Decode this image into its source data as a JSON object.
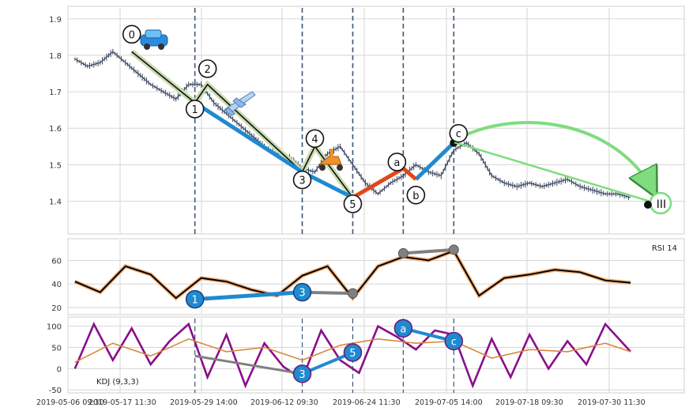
{
  "chart_data": [
    {
      "type": "line",
      "panel": "price",
      "ylim": [
        1.31,
        1.93
      ],
      "yticks": [
        1.4,
        1.5,
        1.6,
        1.7,
        1.8,
        1.9
      ],
      "grid": true,
      "series": [
        {
          "name": "",
          "color": "#3a4660",
          "x": [
            "2019-05-07",
            "2019-05-09",
            "2019-05-11",
            "2019-05-13",
            "2019-05-15",
            "2019-05-17",
            "2019-05-19",
            "2019-05-21",
            "2019-05-23",
            "2019-05-25",
            "2019-05-27",
            "2019-05-29",
            "2019-05-31",
            "2019-06-02",
            "2019-06-04",
            "2019-06-06",
            "2019-06-08",
            "2019-06-10",
            "2019-06-12",
            "2019-06-14",
            "2019-06-16",
            "2019-06-18",
            "2019-06-20",
            "2019-06-22",
            "2019-06-24",
            "2019-06-26",
            "2019-06-28",
            "2019-06-30",
            "2019-07-02",
            "2019-07-04",
            "2019-07-06",
            "2019-07-08",
            "2019-07-10",
            "2019-07-12",
            "2019-07-14",
            "2019-07-16",
            "2019-07-18",
            "2019-07-20",
            "2019-07-22",
            "2019-07-24",
            "2019-07-26",
            "2019-07-28",
            "2019-07-30",
            "2019-08-01",
            "2019-08-03"
          ],
          "y": [
            1.79,
            1.77,
            1.78,
            1.81,
            1.78,
            1.75,
            1.72,
            1.7,
            1.68,
            1.72,
            1.72,
            1.67,
            1.64,
            1.61,
            1.58,
            1.55,
            1.53,
            1.52,
            1.49,
            1.48,
            1.53,
            1.55,
            1.5,
            1.45,
            1.42,
            1.45,
            1.47,
            1.5,
            1.48,
            1.47,
            1.54,
            1.56,
            1.53,
            1.47,
            1.45,
            1.44,
            1.45,
            1.44,
            1.45,
            1.46,
            1.44,
            1.43,
            1.42,
            1.42,
            1.41
          ]
        }
      ],
      "wave_points": [
        {
          "label": "0",
          "x": "2019-05-16",
          "y": 1.81
        },
        {
          "label": "1",
          "x": "2019-05-26",
          "y": 1.67
        },
        {
          "label": "2",
          "x": "2019-05-28",
          "y": 1.72
        },
        {
          "label": "3",
          "x": "2019-06-12",
          "y": 1.48
        },
        {
          "label": "4",
          "x": "2019-06-14",
          "y": 1.55
        },
        {
          "label": "5",
          "x": "2019-06-20",
          "y": 1.41
        },
        {
          "label": "a",
          "x": "2019-06-28",
          "y": 1.49
        },
        {
          "label": "b",
          "x": "2019-06-30",
          "y": 1.46
        },
        {
          "label": "c",
          "x": "2019-07-06",
          "y": 1.56
        }
      ],
      "text_labels": [
        "0",
        "1",
        "2",
        "3",
        "4",
        "5",
        "a",
        "b",
        "c"
      ],
      "vertical_lines_x": [
        "2019-05-26",
        "2019-06-12",
        "2019-06-20",
        "2019-06-28",
        "2019-07-06"
      ],
      "end_marker": {
        "x": "2019-08-05",
        "y": 1.39,
        "label": "III"
      }
    },
    {
      "type": "line",
      "panel": "rsi",
      "annotation": "RSI 14",
      "ylim": [
        14,
        77
      ],
      "yticks": [
        20,
        40,
        60
      ],
      "grid": true,
      "series": [
        {
          "name": "",
          "color": "#000000",
          "x": [
            "2019-05-07",
            "2019-05-11",
            "2019-05-15",
            "2019-05-19",
            "2019-05-23",
            "2019-05-27",
            "2019-05-31",
            "2019-06-04",
            "2019-06-08",
            "2019-06-12",
            "2019-06-16",
            "2019-06-20",
            "2019-06-24",
            "2019-06-28",
            "2019-07-02",
            "2019-07-06",
            "2019-07-10",
            "2019-07-14",
            "2019-07-18",
            "2019-07-22",
            "2019-07-26",
            "2019-07-30",
            "2019-08-03"
          ],
          "y": [
            42,
            33,
            55,
            48,
            28,
            45,
            42,
            35,
            30,
            47,
            55,
            28,
            55,
            63,
            60,
            68,
            30,
            45,
            48,
            52,
            50,
            43,
            41
          ]
        }
      ],
      "points": [
        {
          "label": "1",
          "x": "2019-05-26",
          "y": 27
        },
        {
          "label": "3",
          "x": "2019-06-12",
          "y": 33
        },
        {
          "label": "",
          "x": "2019-06-20",
          "y": 32
        },
        {
          "label": "",
          "x": "2019-06-28",
          "y": 66
        },
        {
          "label": "",
          "x": "2019-07-06",
          "y": 69
        }
      ]
    },
    {
      "type": "line",
      "panel": "kdj",
      "annotation": "KDJ (9,3,3)",
      "ylim": [
        -57,
        118
      ],
      "yticks": [
        -50,
        0,
        50,
        100
      ],
      "grid": true,
      "series": [
        {
          "name": "",
          "color": "#8a0e8a",
          "x": [
            "2019-05-07",
            "2019-05-10",
            "2019-05-13",
            "2019-05-16",
            "2019-05-19",
            "2019-05-22",
            "2019-05-25",
            "2019-05-28",
            "2019-05-31",
            "2019-06-03",
            "2019-06-06",
            "2019-06-09",
            "2019-06-12",
            "2019-06-15",
            "2019-06-18",
            "2019-06-21",
            "2019-06-24",
            "2019-06-27",
            "2019-06-30",
            "2019-07-03",
            "2019-07-06",
            "2019-07-09",
            "2019-07-12",
            "2019-07-15",
            "2019-07-18",
            "2019-07-21",
            "2019-07-24",
            "2019-07-27",
            "2019-07-30",
            "2019-08-03"
          ],
          "y": [
            0,
            105,
            20,
            95,
            10,
            65,
            105,
            -20,
            80,
            -40,
            60,
            5,
            -25,
            90,
            20,
            -10,
            100,
            75,
            45,
            90,
            80,
            -40,
            70,
            -20,
            80,
            0,
            65,
            10,
            105,
            40
          ]
        },
        {
          "name": "",
          "color": "#d9883a",
          "x": [
            "2019-05-07",
            "2019-05-13",
            "2019-05-19",
            "2019-05-25",
            "2019-05-31",
            "2019-06-06",
            "2019-06-12",
            "2019-06-18",
            "2019-06-24",
            "2019-06-30",
            "2019-07-06",
            "2019-07-12",
            "2019-07-18",
            "2019-07-24",
            "2019-07-30",
            "2019-08-03"
          ],
          "y": [
            15,
            60,
            30,
            70,
            40,
            50,
            20,
            55,
            70,
            60,
            65,
            25,
            45,
            40,
            60,
            40
          ]
        }
      ],
      "points": [
        {
          "label": "3",
          "x": "2019-06-12",
          "y": -12
        },
        {
          "label": "5",
          "x": "2019-06-20",
          "y": 38
        },
        {
          "label": "a",
          "x": "2019-06-28",
          "y": 95
        },
        {
          "label": "c",
          "x": "2019-07-06",
          "y": 65
        }
      ]
    }
  ],
  "x_tick_labels": [
    "2019-05-06 09:30",
    "2019-05-17 11:30",
    "2019-05-29 14:00",
    "2019-06-12 09:30",
    "2019-06-24 11:30",
    "2019-07-05 14:00",
    "2019-07-18 09:30",
    "2019-07-30 11:30"
  ],
  "colors": {
    "impulse": "#1f8ad0",
    "correction": "#e0481a",
    "zigzag": "#111111",
    "zigzag_fill": "#c9dcb0",
    "projection": "#7fdc7f",
    "gray_link": "#808080",
    "vline": "#3d5470",
    "grid": "#d6d6d6",
    "label_circle": "#1f8ad0"
  },
  "icons": [
    "car-icon",
    "airplane-icon",
    "scooter-icon"
  ]
}
